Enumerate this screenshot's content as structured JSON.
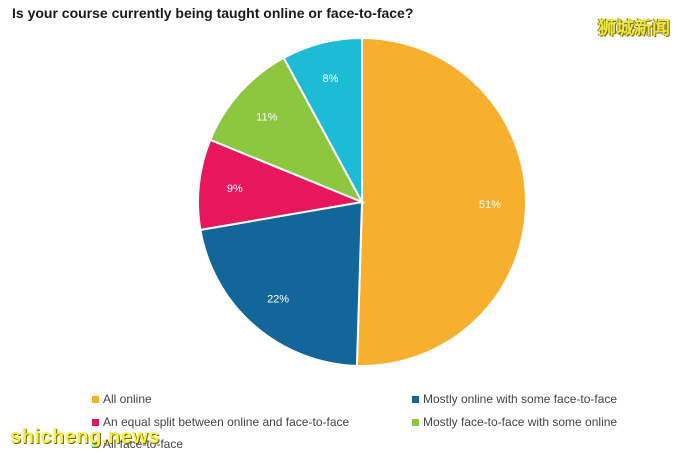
{
  "chart_data": {
    "type": "pie",
    "title": "Is your course currently being taught online or face-to-face?",
    "slices": [
      {
        "name": "All online",
        "value": 51,
        "label": "51%",
        "color": "#f7b02e"
      },
      {
        "name": "Mostly online with some face-to-face",
        "value": 22,
        "label": "22%",
        "color": "#13669a"
      },
      {
        "name": "An equal split between online and face-to-face",
        "value": 9,
        "label": "9%",
        "color": "#e8175d"
      },
      {
        "name": "Mostly face-to-face with some online",
        "value": 11,
        "label": "11%",
        "color": "#8dc63f"
      },
      {
        "name": "All face-to-face",
        "value": 8,
        "label": "8%",
        "color": "#1dbcd6"
      }
    ],
    "legend_placement": "bottom"
  },
  "watermarks": {
    "top": "狮城新闻",
    "bottom": "shicheng.news"
  }
}
